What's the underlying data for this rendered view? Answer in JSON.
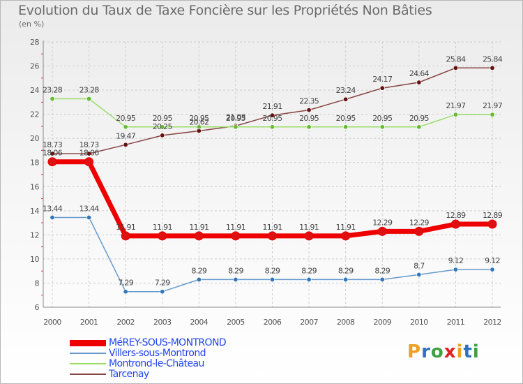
{
  "title": "Evolution du Taux de Taxe Foncière sur les Propriétés Non Bâties",
  "unit_label": "(en %)",
  "logo": {
    "letters": [
      "P",
      "r",
      "o",
      "x",
      "i",
      "t",
      "i"
    ],
    "colors": [
      "#f0a020",
      "#3070c0",
      "#40a040",
      "#e02020",
      "#f0a020",
      "#3070c0",
      "#40a040"
    ]
  },
  "chart_data": {
    "type": "line",
    "title": "Evolution du Taux de Taxe Foncière sur les Propriétés Non Bâties",
    "xlabel": "",
    "ylabel": "(en %)",
    "x": [
      "2000",
      "2001",
      "2002",
      "2003",
      "2004",
      "2005",
      "2006",
      "2007",
      "2008",
      "2009",
      "2010",
      "2011",
      "2012"
    ],
    "ylim": [
      6,
      28
    ],
    "yticks": [
      "6",
      "8",
      "10",
      "12",
      "14",
      "16",
      "18",
      "20",
      "22",
      "24",
      "26",
      "28"
    ],
    "grid": true,
    "legend_position": "bottom-left",
    "series": [
      {
        "name": "MéREY-SOUS-MONTROND",
        "color": "#ee0000",
        "marker": "#dd1111",
        "width": 7,
        "values": [
          18.06,
          18.06,
          11.91,
          11.91,
          11.91,
          11.91,
          11.91,
          11.91,
          11.91,
          12.29,
          12.29,
          12.89,
          12.89
        ],
        "labels": [
          "18.06",
          "18.06",
          "11.91",
          "11.91",
          "11.91",
          "11.91",
          "11.91",
          "11.91",
          "11.91",
          "12.29",
          "12.29",
          "12.89",
          "12.89"
        ]
      },
      {
        "name": "Villers-sous-Montrond",
        "color": "#6699cc",
        "marker": "#3377bb",
        "width": 1.5,
        "values": [
          13.44,
          13.44,
          7.29,
          7.29,
          8.29,
          8.29,
          8.29,
          8.29,
          8.29,
          8.29,
          8.7,
          9.12,
          9.12
        ],
        "labels": [
          "13.44",
          "13.44",
          "7.29",
          "7.29",
          "8.29",
          "8.29",
          "8.29",
          "8.29",
          "8.29",
          "8.29",
          "8.7",
          "9.12",
          "9.12"
        ]
      },
      {
        "name": "Montrond-le-Château",
        "color": "#99dd66",
        "marker": "#66bb33",
        "width": 1.5,
        "values": [
          23.28,
          23.28,
          20.95,
          20.95,
          20.95,
          20.95,
          20.95,
          20.95,
          20.95,
          20.95,
          20.95,
          21.97,
          21.97
        ],
        "labels": [
          "23.28",
          "23.28",
          "20.95",
          "20.95",
          "20.95",
          "20.95",
          "20.95",
          "20.95",
          "20.95",
          "20.95",
          "20.95",
          "21.97",
          "21.97"
        ]
      },
      {
        "name": "Tarcenay",
        "color": "#884444",
        "marker": "#661111",
        "width": 1.5,
        "values": [
          18.73,
          18.73,
          19.47,
          20.25,
          20.62,
          21.03,
          21.91,
          22.35,
          23.24,
          24.17,
          24.64,
          25.84,
          25.84
        ],
        "labels": [
          "18.73",
          "18.73",
          "19.47",
          "20.25",
          "20.62",
          "21.03",
          "21.91",
          "22.35",
          "23.24",
          "24.17",
          "24.64",
          "25.84",
          "25.84"
        ]
      }
    ]
  }
}
